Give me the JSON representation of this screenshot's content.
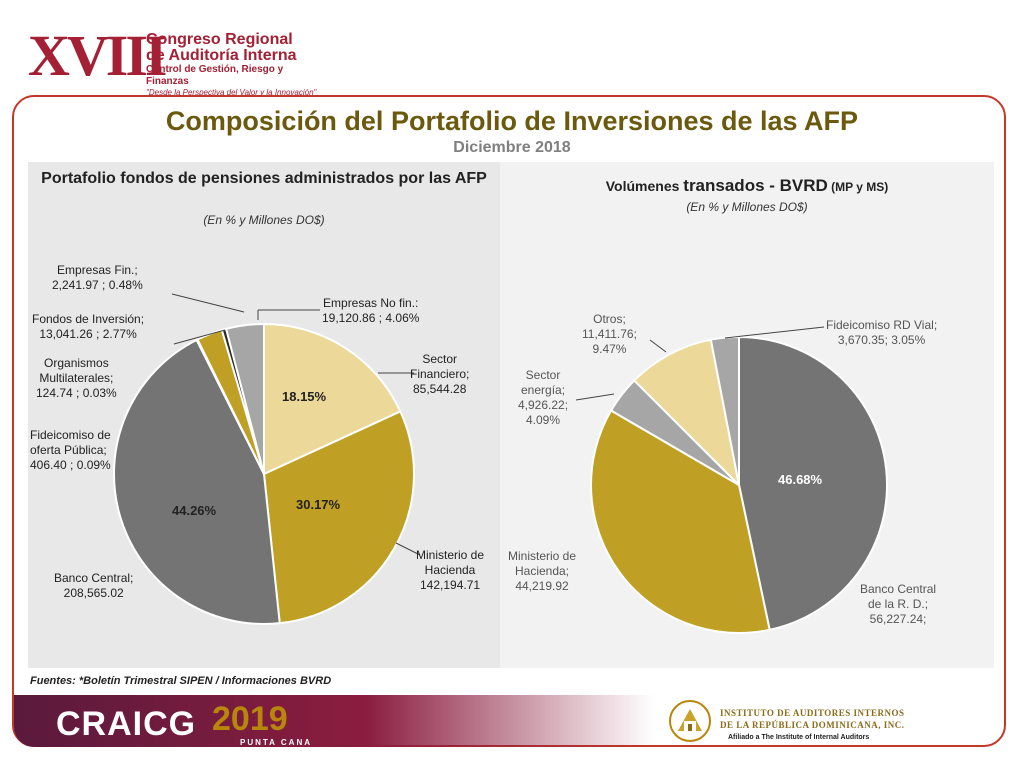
{
  "header": {
    "logo_roman": "XVIII",
    "logo_line1": "Congreso Regional",
    "logo_line2": "de Auditoría Interna",
    "logo_line3": "Control de Gestión, Riesgo y Finanzas",
    "logo_line4": "\"Desde la Perspectiva del Valor y la Innovación\""
  },
  "slide": {
    "title": "Composición del Portafolio de Inversiones de las AFP",
    "subtitle": "Diciembre 2018",
    "sources": "Fuentes: *Boletín Trimestral SIPEN / Informaciones BVRD"
  },
  "footer": {
    "brand": "CRAICG",
    "year": "2019",
    "city": "PUNTA CANA",
    "inst_line1": "INSTITUTO DE AUDITORES INTERNOS",
    "inst_line2": "DE LA REPÚBLICA DOMINICANA, INC.",
    "inst_line3": "Afiliado a The Institute of Internal Auditors"
  },
  "colors": {
    "dark_gray": "#747474",
    "mustard": "#c0a024",
    "cream": "#ecd898",
    "light_gray": "#a6a6a6",
    "black": "#2b2b2b",
    "brand_red": "#a32035"
  },
  "chart_data": [
    {
      "type": "pie",
      "title": "Portafolio fondos de pensiones administrados por las AFP",
      "subtitle": "(En % y Millones DO$)",
      "slices": [
        {
          "label": "Sector Financiero",
          "value_text": "85,544.28",
          "value": 85544.28,
          "pct": 18.15,
          "pct_label": "18.15%",
          "color": "#ecd898"
        },
        {
          "label": "Ministerio de Hacienda",
          "value_text": "142,194.71",
          "value": 142194.71,
          "pct": 30.17,
          "pct_label": "30.17%",
          "color": "#c0a024"
        },
        {
          "label": "Banco Central",
          "value_text": "208,565.02",
          "value": 208565.02,
          "pct": 44.26,
          "pct_label": "44.26%",
          "color": "#747474"
        },
        {
          "label": "Fideicomiso de oferta Pública",
          "value_text": "406.40 ; 0.09%",
          "value": 406.4,
          "pct": 0.09,
          "pct_label": "",
          "color": "#ffffff"
        },
        {
          "label": "Organismos Multilaterales",
          "value_text": "124.74 ; 0.03%",
          "value": 124.74,
          "pct": 0.03,
          "pct_label": "",
          "color": "#333333"
        },
        {
          "label": "Fondos de Inversión",
          "value_text": "13,041.26 ; 2.77%",
          "value": 13041.26,
          "pct": 2.77,
          "pct_label": "",
          "color": "#c0a024"
        },
        {
          "label": "Empresas Fin.",
          "value_text": "2,241.97 ; 0.48%",
          "value": 2241.97,
          "pct": 0.48,
          "pct_label": "",
          "color": "#2b2b2b"
        },
        {
          "label": "Empresas No fin.",
          "value_text": "19,120.86 ; 4.06%",
          "value": 19120.86,
          "pct": 4.06,
          "pct_label": "",
          "color": "#a6a6a6"
        }
      ],
      "text_labels": {
        "emp_no_fin": [
          "Empresas No fin.:",
          "19,120.86 ; 4.06%"
        ],
        "sector_fin": [
          "Sector",
          "Financiero;",
          "85,544.28"
        ],
        "ministerio": [
          "Ministerio de",
          "Hacienda",
          "142,194.71"
        ],
        "banco": [
          "Banco Central;",
          "208,565.02"
        ],
        "fideicomiso": [
          "Fideicomiso de",
          "oferta Pública;",
          "406.40 ; 0.09%"
        ],
        "organismos": [
          "Organismos",
          "Multilaterales;",
          "124.74 ; 0.03%"
        ],
        "fondos": [
          "Fondos de Inversión;",
          "13,041.26 ; 2.77%"
        ],
        "emp_fin": [
          "Empresas Fin.;",
          "2,241.97 ; 0.48%"
        ]
      }
    },
    {
      "type": "pie",
      "title_main": "Volúmenes ",
      "title_big": "transados - BVRD",
      "title_small": " (MP y MS)",
      "subtitle": "(En % y Millones DO$)",
      "slices": [
        {
          "label": "Banco Central de la R. D.",
          "value_text": "56,227.24",
          "value": 56227.24,
          "pct": 46.68,
          "pct_label": "46.68%",
          "color": "#747474"
        },
        {
          "label": "Ministerio de Hacienda",
          "value_text": "44,219.92",
          "value": 44219.92,
          "pct": 36.71,
          "pct_label": "",
          "color": "#c0a024"
        },
        {
          "label": "Sector energía",
          "value_text": "4,926.22",
          "value": 4926.22,
          "pct": 4.09,
          "pct_label": "",
          "color": "#a6a6a6"
        },
        {
          "label": "Otros",
          "value_text": "11,411.76",
          "value": 11411.76,
          "pct": 9.47,
          "pct_label": "",
          "color": "#ecd898"
        },
        {
          "label": "Fideicomiso RD Vial",
          "value_text": "3,670.35",
          "value": 3670.35,
          "pct": 3.05,
          "pct_label": "",
          "color": "#a6a6a6"
        }
      ],
      "text_labels": {
        "fideicomiso_vial": [
          "Fideicomiso RD Vial;",
          "3,670.35;  3.05%"
        ],
        "otros": [
          "Otros;",
          "11,411.76;",
          "9.47%"
        ],
        "sector_energia": [
          "Sector",
          "energía;",
          "4,926.22;",
          "4.09%"
        ],
        "ministerio": [
          "Ministerio de",
          "Hacienda;",
          "44,219.92"
        ],
        "banco": [
          "Banco Central",
          "de la R. D.;",
          "56,227.24;"
        ]
      }
    }
  ]
}
